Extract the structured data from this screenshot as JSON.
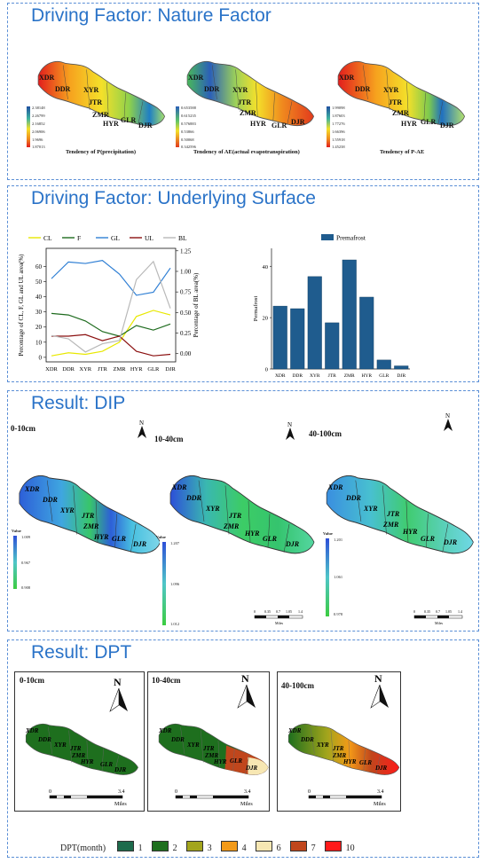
{
  "sections": {
    "nature": {
      "title": "Driving Factor: Nature Factor"
    },
    "surface": {
      "title": "Driving Factor: Underlying Surface"
    },
    "dip": {
      "title": "Result: DIP"
    },
    "dpt": {
      "title": "Result: DPT"
    }
  },
  "basins": [
    "XDR",
    "DDR",
    "XYR",
    "JTR",
    "ZMR",
    "HYR",
    "GLR",
    "DJR"
  ],
  "nature_maps": [
    {
      "caption": "Tendency of P(precipitation)",
      "legend": [
        "2.38148",
        "2.26799",
        "2.16852",
        "2.06906",
        "1.9696",
        "1.87013"
      ]
    },
    {
      "caption": "Tendency of AE(actual evapotranspiration)",
      "legend": [
        "0.653588",
        "0.615235",
        "0.576883",
        "0.53866",
        "0.50068",
        "0.342596"
      ]
    },
    {
      "caption": "Tendency of P-AE",
      "legend": [
        "1.99098",
        "1.87603",
        "1.77276",
        "1.66396",
        "1.55918",
        "1.45238"
      ]
    }
  ],
  "chart_data": [
    {
      "type": "line",
      "categories": [
        "XDR",
        "DDR",
        "XYR",
        "JTR",
        "ZMR",
        "HYR",
        "GLR",
        "DJR"
      ],
      "series": [
        {
          "name": "CL",
          "color": "#e8e800",
          "axis": "left",
          "values": [
            1,
            3,
            2,
            4,
            10,
            27,
            31,
            28
          ]
        },
        {
          "name": "F",
          "color": "#1e6b1e",
          "axis": "left",
          "values": [
            29,
            28,
            24,
            17,
            14,
            21,
            18,
            22
          ]
        },
        {
          "name": "GL",
          "color": "#2f7fd4",
          "axis": "left",
          "values": [
            52,
            63,
            62,
            64,
            55,
            41,
            43,
            59
          ]
        },
        {
          "name": "UL",
          "color": "#8b1010",
          "axis": "left",
          "values": [
            14,
            14,
            15,
            11,
            14,
            4,
            1,
            2
          ]
        },
        {
          "name": "BL",
          "color": "#b8b8b8",
          "axis": "right",
          "values": [
            0.22,
            0.18,
            0.02,
            0.12,
            0.16,
            0.9,
            1.12,
            0.55
          ]
        }
      ],
      "ylabel": "Percentage of CL, F, GL and UL area(%)",
      "y2label": "Percentage of BL area(%)",
      "ylim": [
        -3,
        72
      ],
      "y2lim": [
        -0.1,
        1.28
      ],
      "yticks": [
        0,
        10,
        20,
        30,
        40,
        50,
        60
      ],
      "y2ticks": [
        0.0,
        0.25,
        0.5,
        0.75,
        1.0,
        1.25
      ],
      "y2tick_labels": [
        "0.00",
        "0.25",
        "0.50",
        "0.75",
        "1.00",
        "1.25"
      ],
      "legend": "top"
    },
    {
      "type": "bar",
      "categories": [
        "XDR",
        "DDR",
        "XYR",
        "JTR",
        "ZMR",
        "HYR",
        "GLR",
        "DJR"
      ],
      "values": [
        24.5,
        23.5,
        36,
        18,
        42.5,
        28,
        3.5,
        1.2
      ],
      "series_name": "Premafrost",
      "ylabel": "Permafrost",
      "ylim": [
        0,
        47
      ],
      "yticks": [
        0,
        20,
        40
      ],
      "color": "#1f5c8e",
      "legend": "top-center"
    }
  ],
  "dip": {
    "maps": [
      {
        "depth": "0-10cm",
        "legend_title": "Value",
        "legend_values": [
          "1.009",
          "0.967",
          "0.908"
        ]
      },
      {
        "depth": "10-40cm",
        "legend_title": "Value",
        "legend_values": [
          "1.207",
          "1.096",
          "1.012"
        ]
      },
      {
        "depth": "40-100cm",
        "legend_title": "Value",
        "legend_values": [
          "1.201",
          "1.061",
          "0.978"
        ]
      }
    ],
    "north": "N",
    "scale_labels": [
      "0",
      "0.35",
      "0.7",
      "1.05",
      "1.4"
    ],
    "scale_unit": "Miles"
  },
  "dpt": {
    "maps": [
      {
        "depth": "0-10cm"
      },
      {
        "depth": "10-40cm"
      },
      {
        "depth": "40-100cm"
      }
    ],
    "north": "N",
    "scale_start": "0",
    "scale_end": "3.4",
    "scale_unit": "Miles",
    "legend_title": "DPT(month)",
    "legend": [
      {
        "label": "1",
        "color": "#1d6b4c"
      },
      {
        "label": "2",
        "color": "#1e6f1e"
      },
      {
        "label": "3",
        "color": "#a3a51c"
      },
      {
        "label": "4",
        "color": "#f39a18"
      },
      {
        "label": "6",
        "color": "#f7e7b3"
      },
      {
        "label": "7",
        "color": "#c0461c"
      },
      {
        "label": "10",
        "color": "#ff1a1a"
      }
    ]
  }
}
